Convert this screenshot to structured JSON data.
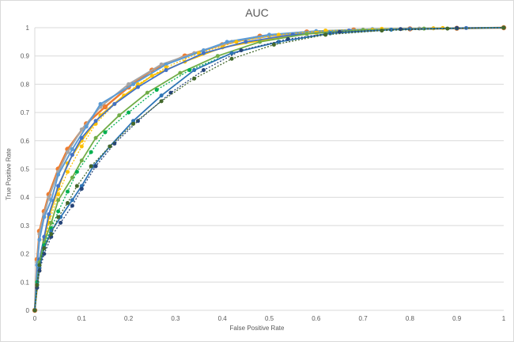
{
  "chart_data": {
    "type": "line",
    "title": "AUC",
    "xlabel": "False Positive Rate",
    "ylabel": "True Positive Rate",
    "xlim": [
      0,
      1
    ],
    "ylim": [
      0,
      1
    ],
    "x_ticks": [
      "0",
      "0.1",
      "0.2",
      "0.3",
      "0.4",
      "0.5",
      "0.6",
      "0.7",
      "0.8",
      "0.9",
      "1"
    ],
    "y_ticks": [
      "0",
      "0.1",
      "0.2",
      "0.3",
      "0.4",
      "0.5",
      "0.6",
      "0.7",
      "0.8",
      "0.9",
      "1"
    ],
    "grid": "horizontal",
    "legend": "none",
    "series": [
      {
        "color": "#ED7D31",
        "dash": false,
        "width": 2.5,
        "x": [
          0,
          0.005,
          0.01,
          0.02,
          0.03,
          0.05,
          0.07,
          0.11,
          0.15,
          0.2,
          0.25,
          0.32,
          0.4,
          0.48,
          0.58,
          0.68,
          0.8,
          0.9,
          1
        ],
        "y": [
          0,
          0.18,
          0.28,
          0.35,
          0.41,
          0.5,
          0.57,
          0.66,
          0.72,
          0.79,
          0.85,
          0.9,
          0.94,
          0.97,
          0.985,
          0.992,
          0.996,
          0.998,
          1
        ]
      },
      {
        "color": "#A5A5A5",
        "dash": false,
        "width": 2,
        "x": [
          0,
          0.005,
          0.01,
          0.02,
          0.03,
          0.05,
          0.07,
          0.1,
          0.14,
          0.2,
          0.27,
          0.34,
          0.42,
          0.5,
          0.6,
          0.7,
          0.82,
          1
        ],
        "y": [
          0,
          0.17,
          0.27,
          0.34,
          0.4,
          0.49,
          0.56,
          0.64,
          0.72,
          0.8,
          0.87,
          0.91,
          0.95,
          0.97,
          0.985,
          0.993,
          0.997,
          1
        ]
      },
      {
        "color": "#5B9BD5",
        "dash": false,
        "width": 2,
        "x": [
          0,
          0.005,
          0.01,
          0.02,
          0.035,
          0.05,
          0.08,
          0.11,
          0.14,
          0.21,
          0.28,
          0.36,
          0.41,
          0.5,
          0.6,
          0.72,
          0.85,
          1
        ],
        "y": [
          0,
          0.16,
          0.25,
          0.33,
          0.39,
          0.48,
          0.57,
          0.65,
          0.73,
          0.8,
          0.87,
          0.92,
          0.95,
          0.975,
          0.988,
          0.995,
          0.998,
          1
        ]
      },
      {
        "color": "#FFC000",
        "dash": false,
        "width": 1.8,
        "x": [
          0,
          0.01,
          0.02,
          0.03,
          0.05,
          0.07,
          0.1,
          0.14,
          0.19,
          0.25,
          0.32,
          0.4,
          0.5,
          0.6,
          0.72,
          0.85,
          1
        ],
        "y": [
          0,
          0.15,
          0.25,
          0.33,
          0.43,
          0.52,
          0.6,
          0.69,
          0.76,
          0.83,
          0.88,
          0.93,
          0.96,
          0.982,
          0.993,
          0.998,
          1
        ]
      },
      {
        "color": "#FFC000",
        "dash": true,
        "width": 1.3,
        "x": [
          0,
          0.01,
          0.02,
          0.03,
          0.05,
          0.07,
          0.1,
          0.13,
          0.17,
          0.22,
          0.28,
          0.35,
          0.43,
          0.52,
          0.62,
          0.74,
          0.87,
          1
        ],
        "y": [
          0,
          0.14,
          0.23,
          0.31,
          0.41,
          0.49,
          0.58,
          0.66,
          0.73,
          0.8,
          0.86,
          0.91,
          0.95,
          0.975,
          0.99,
          0.996,
          0.999,
          1
        ]
      },
      {
        "color": "#4472C4",
        "dash": false,
        "width": 1.8,
        "x": [
          0,
          0.005,
          0.01,
          0.02,
          0.03,
          0.05,
          0.08,
          0.1,
          0.13,
          0.17,
          0.22,
          0.28,
          0.36,
          0.45,
          0.55,
          0.67,
          0.8,
          0.92,
          1
        ],
        "y": [
          0,
          0.1,
          0.18,
          0.26,
          0.34,
          0.44,
          0.55,
          0.61,
          0.67,
          0.73,
          0.79,
          0.85,
          0.91,
          0.95,
          0.975,
          0.99,
          0.996,
          0.999,
          1
        ]
      },
      {
        "color": "#70AD47",
        "dash": false,
        "width": 1.8,
        "x": [
          0,
          0.005,
          0.01,
          0.02,
          0.035,
          0.05,
          0.08,
          0.1,
          0.13,
          0.18,
          0.24,
          0.31,
          0.39,
          0.48,
          0.58,
          0.7,
          0.83,
          1
        ],
        "y": [
          0,
          0.1,
          0.17,
          0.24,
          0.31,
          0.39,
          0.47,
          0.53,
          0.61,
          0.69,
          0.77,
          0.84,
          0.9,
          0.95,
          0.978,
          0.992,
          0.997,
          1
        ]
      },
      {
        "color": "#00B050",
        "dash": true,
        "width": 1.3,
        "x": [
          0,
          0.005,
          0.01,
          0.02,
          0.035,
          0.05,
          0.07,
          0.09,
          0.12,
          0.15,
          0.2,
          0.26,
          0.33,
          0.42,
          0.52,
          0.63,
          0.76,
          0.9,
          1
        ],
        "y": [
          0,
          0.1,
          0.16,
          0.23,
          0.29,
          0.35,
          0.42,
          0.49,
          0.56,
          0.63,
          0.7,
          0.78,
          0.85,
          0.91,
          0.95,
          0.98,
          0.993,
          0.998,
          1
        ]
      },
      {
        "color": "#2E75B6",
        "dash": false,
        "width": 1.8,
        "x": [
          0,
          0.005,
          0.01,
          0.02,
          0.035,
          0.055,
          0.08,
          0.1,
          0.125,
          0.16,
          0.21,
          0.27,
          0.34,
          0.42,
          0.52,
          0.63,
          0.76,
          0.9,
          1
        ],
        "y": [
          0,
          0.09,
          0.15,
          0.22,
          0.28,
          0.33,
          0.39,
          0.44,
          0.51,
          0.58,
          0.67,
          0.76,
          0.85,
          0.91,
          0.95,
          0.98,
          0.993,
          0.998,
          1
        ]
      },
      {
        "color": "#264478",
        "dash": true,
        "width": 1.3,
        "x": [
          0,
          0.005,
          0.01,
          0.02,
          0.035,
          0.055,
          0.08,
          0.1,
          0.13,
          0.17,
          0.22,
          0.29,
          0.36,
          0.44,
          0.54,
          0.65,
          0.78,
          0.9,
          1
        ],
        "y": [
          0,
          0.08,
          0.14,
          0.2,
          0.26,
          0.31,
          0.37,
          0.43,
          0.51,
          0.59,
          0.67,
          0.77,
          0.85,
          0.92,
          0.96,
          0.985,
          0.995,
          0.999,
          1
        ]
      },
      {
        "color": "#43682B",
        "dash": true,
        "width": 1.3,
        "x": [
          0,
          0.005,
          0.01,
          0.02,
          0.035,
          0.05,
          0.07,
          0.09,
          0.12,
          0.16,
          0.21,
          0.27,
          0.34,
          0.42,
          0.51,
          0.62,
          0.74,
          0.88,
          1
        ],
        "y": [
          0,
          0.09,
          0.16,
          0.22,
          0.27,
          0.33,
          0.38,
          0.44,
          0.51,
          0.58,
          0.66,
          0.74,
          0.82,
          0.89,
          0.94,
          0.975,
          0.99,
          0.997,
          1
        ]
      }
    ]
  }
}
